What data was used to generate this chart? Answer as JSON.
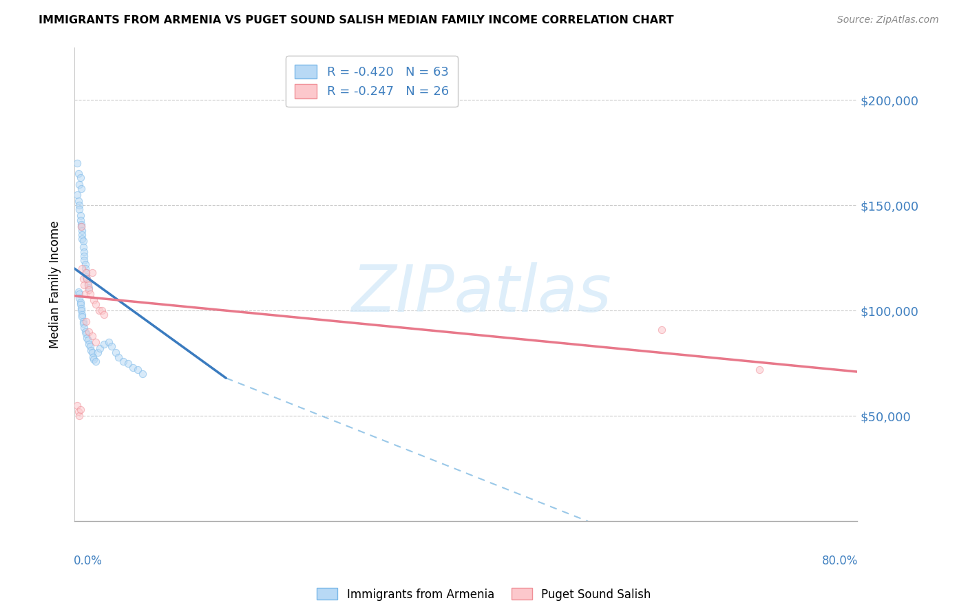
{
  "title": "IMMIGRANTS FROM ARMENIA VS PUGET SOUND SALISH MEDIAN FAMILY INCOME CORRELATION CHART",
  "source": "Source: ZipAtlas.com",
  "ylabel": "Median Family Income",
  "ytick_labels": [
    "$50,000",
    "$100,000",
    "$150,000",
    "$200,000"
  ],
  "ytick_values": [
    50000,
    100000,
    150000,
    200000
  ],
  "ylim": [
    0,
    225000
  ],
  "xlim": [
    0.0,
    0.8
  ],
  "armenia_scatter_x": [
    0.003,
    0.004,
    0.006,
    0.005,
    0.007,
    0.003,
    0.004,
    0.005,
    0.005,
    0.006,
    0.006,
    0.007,
    0.007,
    0.008,
    0.008,
    0.008,
    0.009,
    0.009,
    0.01,
    0.01,
    0.01,
    0.011,
    0.011,
    0.012,
    0.012,
    0.013,
    0.014,
    0.015,
    0.004,
    0.005,
    0.005,
    0.006,
    0.006,
    0.007,
    0.007,
    0.008,
    0.008,
    0.009,
    0.009,
    0.01,
    0.011,
    0.012,
    0.013,
    0.014,
    0.015,
    0.016,
    0.017,
    0.018,
    0.019,
    0.02,
    0.022,
    0.024,
    0.026,
    0.03,
    0.035,
    0.038,
    0.042,
    0.045,
    0.05,
    0.055,
    0.06,
    0.065,
    0.07
  ],
  "armenia_scatter_y": [
    170000,
    165000,
    163000,
    160000,
    158000,
    155000,
    152000,
    150000,
    148000,
    145000,
    143000,
    141000,
    140000,
    138000,
    136000,
    134000,
    133000,
    130000,
    128000,
    126000,
    124000,
    122000,
    120000,
    118000,
    116000,
    115000,
    113000,
    111000,
    109000,
    108000,
    106000,
    104000,
    103000,
    101000,
    100000,
    98000,
    97000,
    95000,
    94000,
    92000,
    90000,
    89000,
    87000,
    86000,
    84000,
    83000,
    81000,
    80000,
    78000,
    77000,
    76000,
    80000,
    82000,
    84000,
    85000,
    83000,
    80000,
    78000,
    76000,
    75000,
    73000,
    72000,
    70000
  ],
  "salish_scatter_x": [
    0.003,
    0.004,
    0.005,
    0.006,
    0.007,
    0.008,
    0.009,
    0.01,
    0.011,
    0.012,
    0.013,
    0.014,
    0.015,
    0.016,
    0.018,
    0.02,
    0.022,
    0.025,
    0.028,
    0.03,
    0.012,
    0.015,
    0.018,
    0.022,
    0.6,
    0.7
  ],
  "salish_scatter_y": [
    55000,
    52000,
    50000,
    53000,
    140000,
    120000,
    115000,
    112000,
    108000,
    118000,
    115000,
    112000,
    110000,
    108000,
    118000,
    105000,
    103000,
    100000,
    100000,
    98000,
    95000,
    90000,
    88000,
    85000,
    91000,
    72000
  ],
  "armenia_line_x": [
    0.0,
    0.155
  ],
  "armenia_line_y": [
    120000,
    68000
  ],
  "salish_line_x": [
    0.0,
    0.8
  ],
  "salish_line_y": [
    107000,
    71000
  ],
  "dashed_line_x": [
    0.155,
    0.525
  ],
  "dashed_line_y": [
    68000,
    0
  ],
  "background_color": "#ffffff",
  "scatter_alpha": 0.55,
  "scatter_size": 55,
  "watermark_text": "ZIPatlas",
  "watermark_color": "#d0e8f8",
  "legend_label1": "R = -0.420   N = 63",
  "legend_label2": "R = -0.247   N = 26",
  "bottom_label1": "Immigrants from Armenia",
  "bottom_label2": "Puget Sound Salish"
}
